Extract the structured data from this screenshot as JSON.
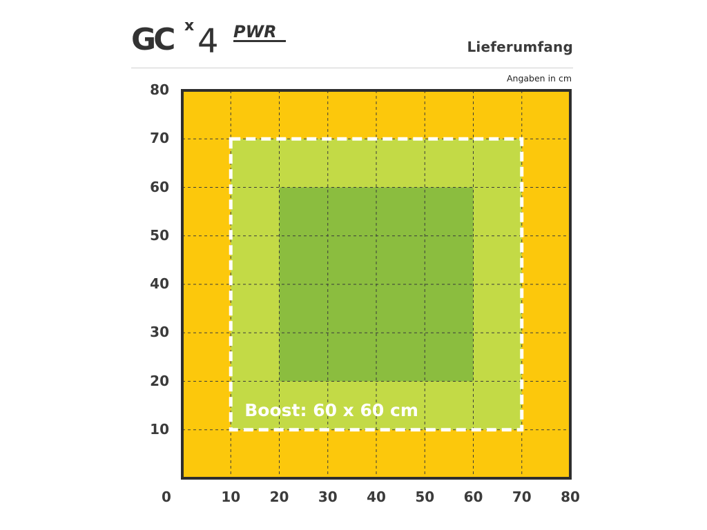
{
  "header": {
    "title": "Lieferumfang",
    "units_note": "Angaben in cm"
  },
  "logo": {
    "brand": "GC",
    "model_prefix": "x",
    "model_number": "4",
    "model_suffix": "PWR"
  },
  "diagram": {
    "area_label": "Boost: 60 x 60 cm",
    "x_axis_ticks": [
      "0",
      "10",
      "20",
      "30",
      "40",
      "50",
      "60",
      "70",
      "80"
    ],
    "y_axis_ticks": [
      "10",
      "20",
      "30",
      "40",
      "50",
      "60",
      "70",
      "80"
    ],
    "outer_extent_cm": [
      0,
      80
    ],
    "boost_area_cm": {
      "x": [
        10,
        70
      ],
      "y": [
        10,
        70
      ]
    },
    "core_area_cm": {
      "x": [
        20,
        60
      ],
      "y": [
        20,
        60
      ]
    },
    "grid_step_cm": 10,
    "colors": {
      "outer": "#fcc80c",
      "boost": "#c3da46",
      "core": "#8bbd3f",
      "frame": "#2e2e2e",
      "boost_outline": "#ffffff"
    }
  }
}
